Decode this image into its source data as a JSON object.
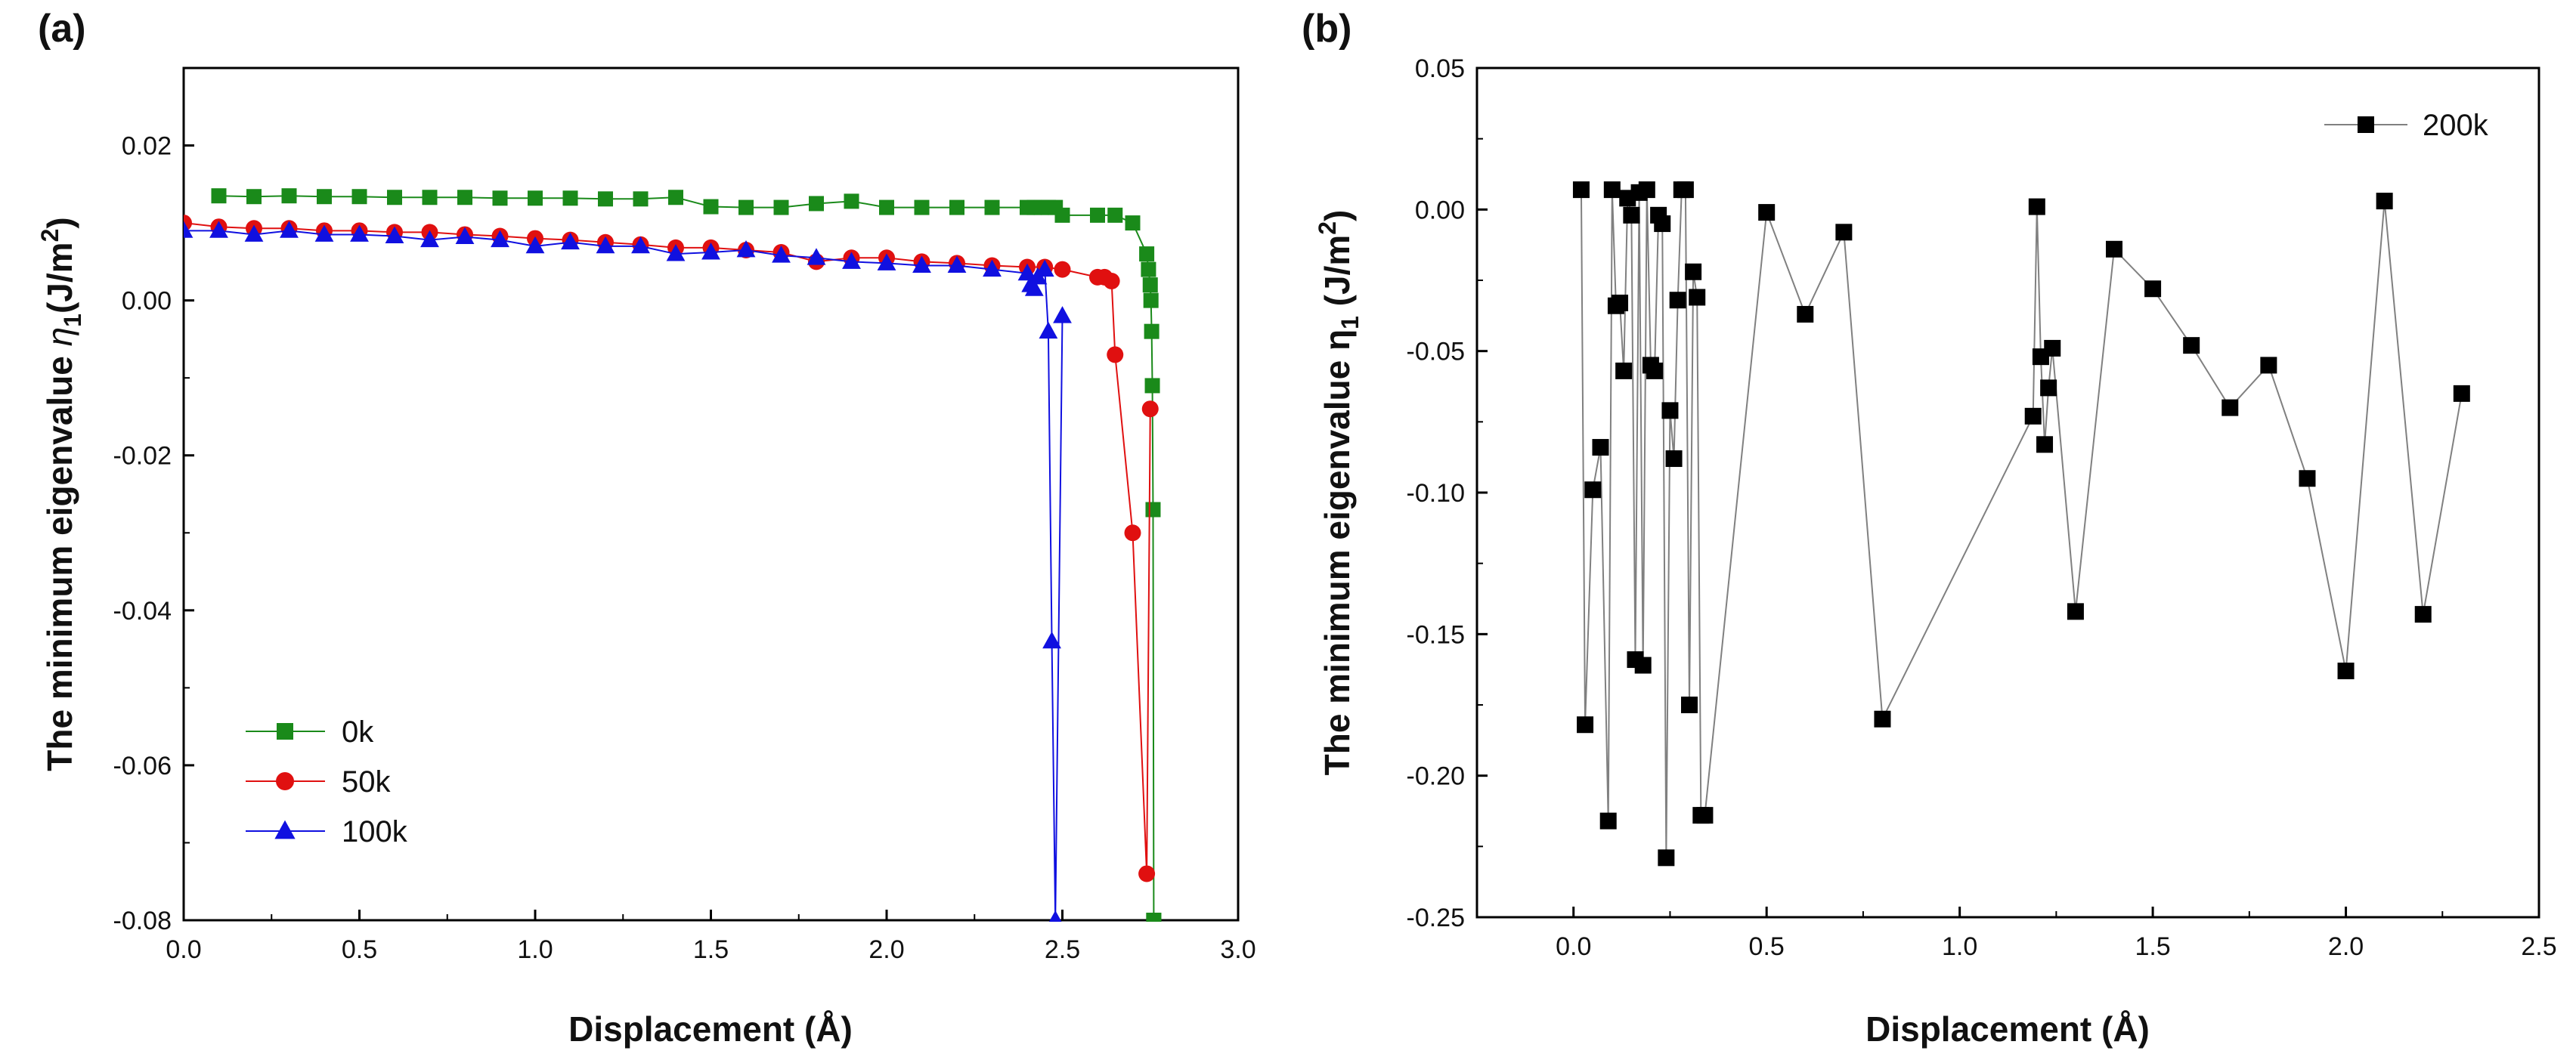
{
  "chart_data": [
    {
      "panel_label": "(a)",
      "type": "line",
      "xlabel": "Displacement (Å)",
      "ylabel_main": "The minimum eigenvalue ",
      "ylabel_symbol": "η",
      "ylabel_sub": "1",
      "ylabel_unit": "(J/m",
      "ylabel_sup": "2",
      "ylabel_close": ")",
      "xlim": [
        0.0,
        3.0
      ],
      "ylim": [
        -0.08,
        0.03
      ],
      "xticks": [
        0.0,
        0.5,
        1.0,
        1.5,
        2.0,
        2.5,
        3.0
      ],
      "xtick_labels": [
        "0.0",
        "0.5",
        "1.0",
        "1.5",
        "2.0",
        "2.5",
        "3.0"
      ],
      "yticks": [
        -0.08,
        -0.06,
        -0.04,
        -0.02,
        0.0,
        0.02
      ],
      "ytick_labels": [
        "-0.08",
        "-0.06",
        "-0.04",
        "-0.02",
        "0.00",
        "0.02"
      ],
      "legend_position": "bottom-left",
      "series": [
        {
          "name": "0k",
          "color": "#1a8a1a",
          "marker": "square",
          "x": [
            0.1,
            0.2,
            0.3,
            0.4,
            0.5,
            0.6,
            0.7,
            0.8,
            0.9,
            1.0,
            1.1,
            1.2,
            1.3,
            1.4,
            1.5,
            1.6,
            1.7,
            1.8,
            1.9,
            2.0,
            2.1,
            2.2,
            2.3,
            2.4,
            2.42,
            2.44,
            2.46,
            2.48,
            2.5,
            2.6,
            2.65,
            2.7,
            2.74,
            2.745,
            2.75,
            2.752,
            2.754,
            2.756,
            2.758,
            2.76,
            2.76
          ],
          "y": [
            0.0135,
            0.0134,
            0.0135,
            0.0134,
            0.0134,
            0.0133,
            0.0133,
            0.0133,
            0.0132,
            0.0132,
            0.0132,
            0.0131,
            0.0131,
            0.0133,
            0.0121,
            0.012,
            0.012,
            0.0125,
            0.0128,
            0.012,
            0.012,
            0.012,
            0.012,
            0.012,
            0.012,
            0.012,
            0.012,
            0.012,
            0.011,
            0.011,
            0.011,
            0.01,
            0.006,
            0.004,
            0.002,
            0.0,
            -0.004,
            -0.011,
            -0.027,
            -0.08,
            -0.08
          ]
        },
        {
          "name": "50k",
          "color": "#e01010",
          "marker": "circle",
          "x": [
            0.0,
            0.1,
            0.2,
            0.3,
            0.4,
            0.5,
            0.6,
            0.7,
            0.8,
            0.9,
            1.0,
            1.1,
            1.2,
            1.3,
            1.4,
            1.5,
            1.6,
            1.7,
            1.8,
            1.9,
            2.0,
            2.1,
            2.2,
            2.3,
            2.4,
            2.45,
            2.5,
            2.6,
            2.62,
            2.64,
            2.65,
            2.7,
            2.74,
            2.75
          ],
          "y": [
            0.01,
            0.0095,
            0.0093,
            0.0093,
            0.009,
            0.009,
            0.0088,
            0.0088,
            0.0085,
            0.0083,
            0.008,
            0.0078,
            0.0075,
            0.0072,
            0.0068,
            0.0068,
            0.0065,
            0.0062,
            0.005,
            0.0055,
            0.0055,
            0.005,
            0.0048,
            0.0045,
            0.0043,
            0.0043,
            0.004,
            0.003,
            0.003,
            0.0025,
            -0.007,
            -0.03,
            -0.074,
            -0.014
          ]
        },
        {
          "name": "100k",
          "color": "#1010e0",
          "marker": "triangle",
          "x": [
            0.0,
            0.1,
            0.2,
            0.3,
            0.4,
            0.5,
            0.6,
            0.7,
            0.8,
            0.9,
            1.0,
            1.1,
            1.2,
            1.3,
            1.4,
            1.5,
            1.6,
            1.7,
            1.8,
            1.9,
            2.0,
            2.1,
            2.2,
            2.3,
            2.4,
            2.41,
            2.42,
            2.43,
            2.45,
            2.46,
            2.47,
            2.48,
            2.5
          ],
          "y": [
            0.009,
            0.009,
            0.0085,
            0.009,
            0.0085,
            0.0085,
            0.0083,
            0.0078,
            0.0082,
            0.0078,
            0.007,
            0.0075,
            0.007,
            0.007,
            0.006,
            0.0062,
            0.0065,
            0.0058,
            0.0055,
            0.005,
            0.0048,
            0.0045,
            0.0045,
            0.004,
            0.0035,
            0.002,
            0.0015,
            0.003,
            0.004,
            -0.004,
            -0.044,
            -0.08,
            -0.002
          ]
        }
      ]
    },
    {
      "panel_label": "(b)",
      "type": "line",
      "xlabel": "Displacement (Å)",
      "ylabel_main": "The minimum eigenvalue η",
      "ylabel_sub": "1",
      "ylabel_unit": " (J/m",
      "ylabel_sup": "2",
      "ylabel_close": ")",
      "xlim": [
        -0.25,
        2.5
      ],
      "ylim": [
        -0.25,
        0.05
      ],
      "xticks": [
        0.0,
        0.5,
        1.0,
        1.5,
        2.0,
        2.5
      ],
      "xtick_labels": [
        "0.0",
        "0.5",
        "1.0",
        "1.5",
        "2.0",
        "2.5"
      ],
      "yticks": [
        -0.25,
        -0.2,
        -0.15,
        -0.1,
        -0.05,
        0.0,
        0.05
      ],
      "ytick_labels": [
        "-0.25",
        "-0.20",
        "-0.15",
        "-0.10",
        "-0.05",
        "0.00",
        "0.05"
      ],
      "legend_position": "top-right",
      "series": [
        {
          "name": "200k",
          "color": "#000000",
          "line_color": "#808080",
          "marker": "square",
          "x": [
            0.02,
            0.03,
            0.05,
            0.07,
            0.09,
            0.1,
            0.11,
            0.12,
            0.13,
            0.14,
            0.15,
            0.16,
            0.17,
            0.18,
            0.19,
            0.2,
            0.21,
            0.22,
            0.23,
            0.24,
            0.25,
            0.26,
            0.27,
            0.28,
            0.29,
            0.3,
            0.31,
            0.32,
            0.33,
            0.34,
            0.5,
            0.6,
            0.7,
            0.8,
            1.19,
            1.2,
            1.21,
            1.22,
            1.23,
            1.24,
            1.3,
            1.4,
            1.5,
            1.6,
            1.7,
            1.8,
            1.9,
            2.0,
            2.1,
            2.2,
            2.3
          ],
          "y": [
            0.007,
            -0.182,
            -0.099,
            -0.084,
            -0.216,
            0.007,
            -0.034,
            -0.033,
            -0.057,
            0.004,
            -0.002,
            -0.159,
            0.006,
            -0.161,
            0.007,
            -0.055,
            -0.057,
            -0.002,
            -0.005,
            -0.229,
            -0.071,
            -0.088,
            -0.032,
            0.007,
            0.007,
            -0.175,
            -0.022,
            -0.031,
            -0.214,
            -0.214,
            -0.001,
            -0.037,
            -0.008,
            -0.18,
            -0.073,
            0.001,
            -0.052,
            -0.083,
            -0.063,
            -0.049,
            -0.142,
            -0.014,
            -0.028,
            -0.048,
            -0.07,
            -0.055,
            -0.095,
            -0.163,
            0.003,
            -0.143,
            -0.065
          ]
        }
      ]
    }
  ]
}
